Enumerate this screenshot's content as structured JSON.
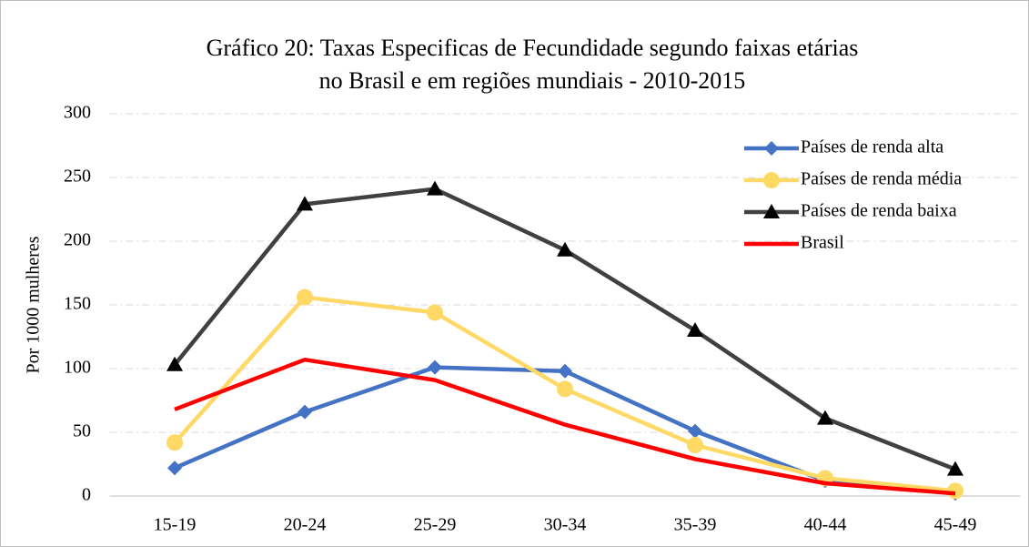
{
  "chart_data": {
    "type": "line",
    "title": [
      "Gráfico 20:  Taxas Especificas de Fecundidade segundo faixas etárias",
      "no Brasil e em regiões mundiais - 2010-2015"
    ],
    "y_label": "Por  1000 mulheres",
    "categories": [
      "15-19",
      "20-24",
      "25-29",
      "30-34",
      "35-39",
      "40-44",
      "45-49"
    ],
    "series": [
      {
        "name": "Países de renda alta",
        "color": "#4472c4",
        "marker": "diamond",
        "values": [
          22,
          66,
          101,
          98,
          51,
          12,
          2
        ]
      },
      {
        "name": "Países de renda média",
        "color": "#ffd966",
        "marker": "circle",
        "values": [
          42,
          156,
          144,
          84,
          40,
          14,
          4
        ]
      },
      {
        "name": "Países de renda baixa",
        "color": "#404040",
        "marker": "triangle",
        "values": [
          103,
          229,
          241,
          193,
          130,
          61,
          21
        ]
      },
      {
        "name": "Brasil",
        "color": "#ff0000",
        "marker": "none",
        "values": [
          68,
          107,
          91,
          56,
          29,
          10,
          2
        ]
      }
    ],
    "ylim": [
      0,
      300
    ],
    "yticks": [
      0,
      50,
      100,
      150,
      200,
      250,
      300
    ],
    "grid": true,
    "legend": "upper right"
  }
}
